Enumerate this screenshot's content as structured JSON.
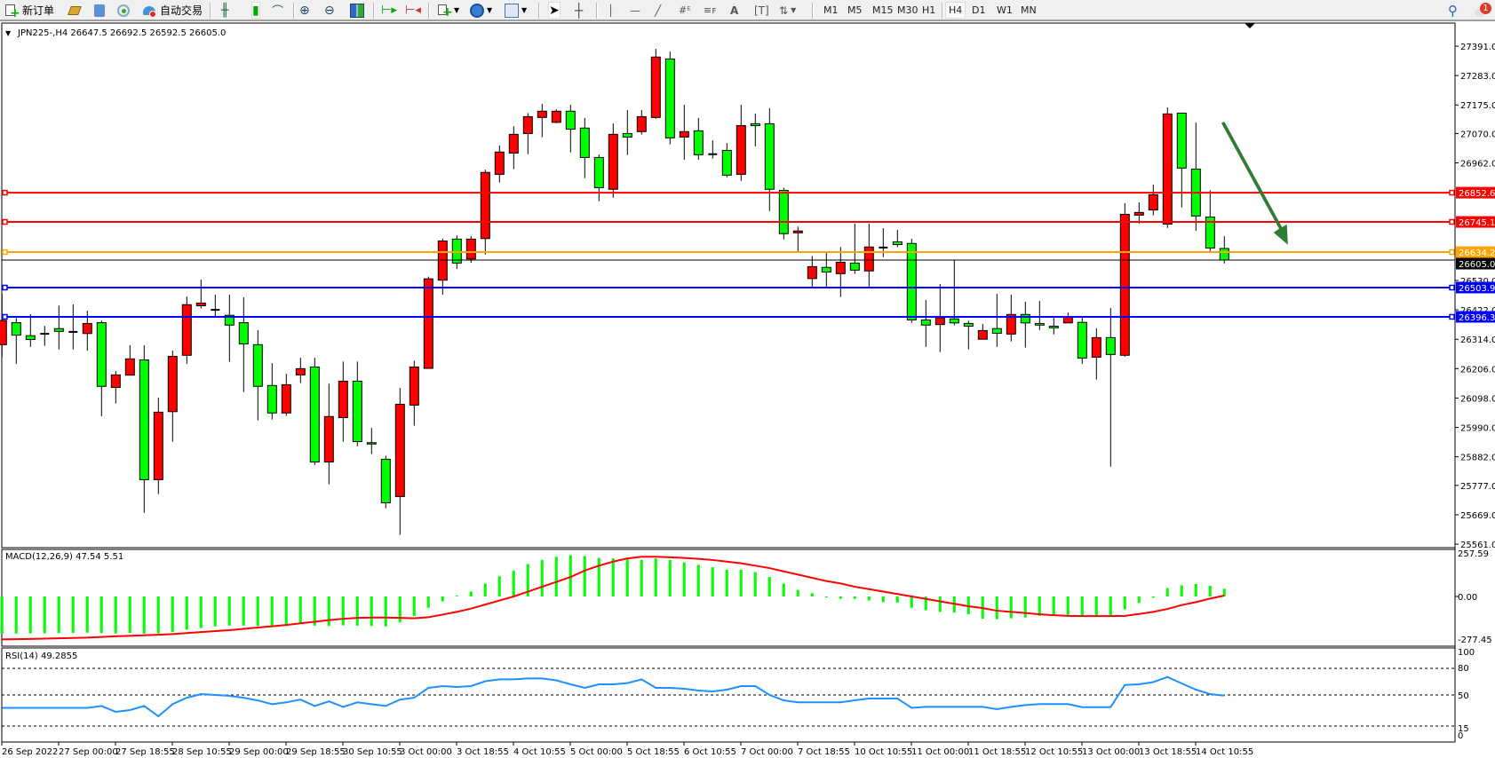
{
  "toolbar": {
    "new_order": "新订单",
    "auto_trading": "自动交易",
    "timeframes": [
      "M1",
      "M5",
      "M15",
      "M30",
      "H1",
      "H4",
      "D1",
      "W1",
      "MN"
    ],
    "selected_timeframe": "H4",
    "notification_count": "1"
  },
  "chart": {
    "info_label": "JPN225-,H4  26647.5 26692.5 26592.5 26605.0",
    "macd_label": "MACD(12,26,9) 47.54 5.51",
    "rsi_label": "RSI(14) 49.2855",
    "bull_color": "#ff0000",
    "bear_color": "#00ff00"
  },
  "chart_data": {
    "type": "candlestick",
    "symbol": "JPN225-",
    "timeframe": "H4",
    "ylim": [
      25561,
      27391
    ],
    "price_ticks": [
      "27391.0",
      "27283.0",
      "27175.0",
      "27070.0",
      "26962.0",
      "26530.0",
      "26422.0",
      "26314.0",
      "26206.0",
      "26098.0",
      "25990.0",
      "25882.0",
      "25777.0",
      "25669.0",
      "25561.0"
    ],
    "time_labels": [
      "26 Sep 2022",
      "27 Sep 00:00",
      "27 Sep 18:55",
      "28 Sep 10:55",
      "29 Sep 00:00",
      "29 Sep 18:55",
      "30 Sep 10:55",
      "3 Oct 00:00",
      "3 Oct 18:55",
      "4 Oct 10:55",
      "5 Oct 00:00",
      "5 Oct 18:55",
      "6 Oct 10:55",
      "7 Oct 00:00",
      "7 Oct 18:55",
      "10 Oct 10:55",
      "11 Oct 00:00",
      "11 Oct 18:55",
      "12 Oct 10:55",
      "13 Oct 00:00",
      "13 Oct 18:55",
      "14 Oct 10:55"
    ],
    "candles_ohlc": [
      [
        26294,
        26481,
        26250,
        26383
      ],
      [
        26375,
        26392,
        26223,
        26329
      ],
      [
        26327,
        26406,
        26286,
        26313
      ],
      [
        26334,
        26363,
        26290,
        26334
      ],
      [
        26353,
        26438,
        26276,
        26343
      ],
      [
        26341,
        26442,
        26276,
        26341
      ],
      [
        26335,
        26419,
        26272,
        26372
      ],
      [
        26375,
        26383,
        26031,
        26141
      ],
      [
        26137,
        26197,
        26078,
        26183
      ],
      [
        26182,
        26292,
        26182,
        26242
      ],
      [
        26238,
        26292,
        25676,
        25798
      ],
      [
        25798,
        26099,
        25745,
        26046
      ],
      [
        26048,
        26272,
        25937,
        26251
      ],
      [
        26255,
        26471,
        26223,
        26441
      ],
      [
        26437,
        26533,
        26427,
        26447
      ],
      [
        26422,
        26478,
        26399,
        26422
      ],
      [
        26402,
        26478,
        26231,
        26366
      ],
      [
        26375,
        26468,
        26120,
        26297
      ],
      [
        26294,
        26347,
        26016,
        26141
      ],
      [
        26144,
        26226,
        26019,
        26043
      ],
      [
        26043,
        26187,
        26032,
        26147
      ],
      [
        26183,
        26246,
        26153,
        26206
      ],
      [
        26212,
        26246,
        25852,
        25863
      ],
      [
        25863,
        26151,
        25781,
        26030
      ],
      [
        26026,
        26232,
        25937,
        26160
      ],
      [
        26160,
        26232,
        25921,
        25938
      ],
      [
        25934,
        25988,
        25892,
        25929
      ],
      [
        25873,
        25886,
        25693,
        25713
      ],
      [
        25736,
        26135,
        25595,
        26075
      ],
      [
        26072,
        26235,
        25996,
        26212
      ],
      [
        26207,
        26544,
        26207,
        26536
      ],
      [
        26531,
        26684,
        26478,
        26675
      ],
      [
        26682,
        26696,
        26572,
        26594
      ],
      [
        26609,
        26693,
        26595,
        26682
      ],
      [
        26684,
        26937,
        26625,
        26927
      ],
      [
        26920,
        27026,
        26890,
        27002
      ],
      [
        26998,
        27097,
        26939,
        27067
      ],
      [
        27070,
        27145,
        26994,
        27132
      ],
      [
        27129,
        27179,
        27056,
        27152
      ],
      [
        27111,
        27159,
        27108,
        27152
      ],
      [
        27152,
        27176,
        27001,
        27086
      ],
      [
        27090,
        27127,
        26906,
        26982
      ],
      [
        26982,
        26993,
        26821,
        26871
      ],
      [
        26865,
        27107,
        26834,
        27067
      ],
      [
        27070,
        27156,
        26991,
        27057
      ],
      [
        27077,
        27156,
        27066,
        27132
      ],
      [
        27129,
        27381,
        27124,
        27351
      ],
      [
        27344,
        27371,
        27030,
        27054
      ],
      [
        27057,
        27176,
        26974,
        27077
      ],
      [
        27080,
        27127,
        26974,
        26992
      ],
      [
        26994,
        27045,
        26978,
        26994
      ],
      [
        27008,
        27035,
        26909,
        26917
      ],
      [
        26920,
        27176,
        26896,
        27099
      ],
      [
        27106,
        27143,
        27023,
        27099
      ],
      [
        27106,
        27163,
        26785,
        26865
      ],
      [
        26861,
        26871,
        26681,
        26702
      ],
      [
        26705,
        26728,
        26636,
        26712
      ],
      [
        26537,
        26620,
        26507,
        26581
      ],
      [
        26578,
        26631,
        26507,
        26561
      ],
      [
        26555,
        26653,
        26469,
        26597
      ],
      [
        26594,
        26739,
        26554,
        26568
      ],
      [
        26565,
        26739,
        26507,
        26653
      ],
      [
        26651,
        26722,
        26616,
        26651
      ],
      [
        26672,
        26716,
        26653,
        26662
      ],
      [
        26666,
        26683,
        26374,
        26385
      ],
      [
        26385,
        26458,
        26286,
        26366
      ],
      [
        26368,
        26517,
        26267,
        26393
      ],
      [
        26389,
        26604,
        26365,
        26374
      ],
      [
        26372,
        26382,
        26277,
        26362
      ],
      [
        26314,
        26370,
        26314,
        26346
      ],
      [
        26353,
        26481,
        26286,
        26336
      ],
      [
        26333,
        26478,
        26306,
        26405
      ],
      [
        26405,
        26452,
        26283,
        26374
      ],
      [
        26372,
        26455,
        26348,
        26366
      ],
      [
        26362,
        26395,
        26332,
        26356
      ],
      [
        26374,
        26412,
        26374,
        26395
      ],
      [
        26376,
        26395,
        26223,
        26245
      ],
      [
        26248,
        26354,
        26166,
        26320
      ],
      [
        26320,
        26429,
        25846,
        26258
      ],
      [
        26255,
        26814,
        26250,
        26773
      ],
      [
        26770,
        26817,
        26739,
        26780
      ],
      [
        26789,
        26882,
        26769,
        26845
      ],
      [
        26737,
        27166,
        26723,
        27142
      ],
      [
        27145,
        27145,
        26798,
        26943
      ],
      [
        26939,
        27110,
        26713,
        26767
      ],
      [
        26763,
        26861,
        26638,
        26649
      ],
      [
        26647.5,
        26692.5,
        26592.5,
        26605.0
      ]
    ],
    "horizontal_lines": [
      {
        "price": 26852.6,
        "label": "26852.6",
        "color": "#ff0000"
      },
      {
        "price": 26745.1,
        "label": "26745.1",
        "color": "#ff0000"
      },
      {
        "price": 26634.2,
        "label": "26634.2",
        "color": "#ffa500"
      },
      {
        "price": 26503.9,
        "label": "26503.9",
        "color": "#0000ff"
      },
      {
        "price": 26396.3,
        "label": "26396.3",
        "color": "#0000ff"
      }
    ],
    "bid": {
      "price": 26605.0,
      "label": "26605.0",
      "color": "#000000"
    },
    "annotation_arrow": {
      "direction": "down",
      "color": "#2e7d32"
    },
    "macd": {
      "ylim": [
        -277.45,
        257.59
      ],
      "ticks": [
        "257.59",
        "0.00",
        "-277.45"
      ],
      "histogram_color": "#00ff00",
      "signal_color": "#ff0000",
      "histogram": [
        -229,
        -229,
        -228,
        -227,
        -226,
        -225,
        -224,
        -226,
        -228,
        -225,
        -230,
        -228,
        -220,
        -205,
        -195,
        -185,
        -180,
        -180,
        -182,
        -182,
        -175,
        -170,
        -180,
        -182,
        -178,
        -180,
        -182,
        -185,
        -160,
        -120,
        -70,
        -30,
        5,
        30,
        80,
        125,
        160,
        200,
        225,
        245,
        255,
        250,
        238,
        235,
        230,
        225,
        235,
        225,
        210,
        195,
        180,
        165,
        165,
        150,
        120,
        80,
        40,
        20,
        -5,
        -15,
        -15,
        -25,
        -35,
        -38,
        -70,
        -85,
        -95,
        -100,
        -110,
        -137,
        -140,
        -135,
        -130,
        -120,
        -120,
        -120,
        -120,
        -120,
        -120,
        -80,
        -40,
        -7,
        51,
        69,
        77,
        66,
        47.54
      ],
      "signal": [
        -265,
        -264,
        -262,
        -260,
        -258,
        -256,
        -254,
        -250,
        -246,
        -243,
        -240,
        -236,
        -232,
        -226,
        -220,
        -214,
        -208,
        -200,
        -192,
        -184,
        -176,
        -166,
        -156,
        -146,
        -138,
        -132,
        -130,
        -130,
        -132,
        -135,
        -128,
        -112,
        -95,
        -75,
        -50,
        -25,
        0,
        30,
        60,
        90,
        120,
        160,
        190,
        215,
        235,
        245,
        245,
        242,
        238,
        232,
        225,
        215,
        205,
        190,
        175,
        155,
        135,
        115,
        95,
        80,
        60,
        45,
        30,
        15,
        0,
        -15,
        -30,
        -45,
        -60,
        -72,
        -88,
        -95,
        -102,
        -110,
        -116,
        -120,
        -121,
        -121,
        -121,
        -120,
        -108,
        -95,
        -77,
        -53,
        -35,
        -13,
        5.51
      ]
    },
    "rsi": {
      "ylim": [
        0,
        100
      ],
      "ticks": [
        "100",
        "80",
        "50",
        "15",
        "0"
      ],
      "levels": [
        80,
        50,
        15
      ],
      "color": "#1e90ff",
      "values": [
        35.5,
        35.5,
        35.5,
        35.5,
        35.5,
        35.5,
        35.5,
        37.6,
        31,
        33,
        37.6,
        26,
        39.6,
        46.9,
        51,
        50,
        49,
        46.9,
        43.8,
        39.6,
        41.7,
        44.8,
        37.6,
        42.8,
        36.6,
        41.7,
        39.6,
        37.6,
        44.8,
        46.9,
        58,
        60,
        59,
        60,
        65.5,
        67.6,
        67.6,
        68.6,
        68.6,
        66.5,
        62,
        58,
        62,
        62,
        63.4,
        67.6,
        58,
        58,
        57,
        55,
        54,
        56,
        60,
        60,
        50,
        44,
        41.7,
        41.7,
        41.7,
        41.7,
        44,
        46,
        46,
        46,
        35.5,
        36.6,
        36.6,
        36.6,
        36.6,
        36.6,
        34,
        36.6,
        38.6,
        39.7,
        39.7,
        39.7,
        36.3,
        36.3,
        36.3,
        61.3,
        62,
        64.5,
        70.3,
        63,
        56,
        51,
        49.2855
      ]
    }
  }
}
